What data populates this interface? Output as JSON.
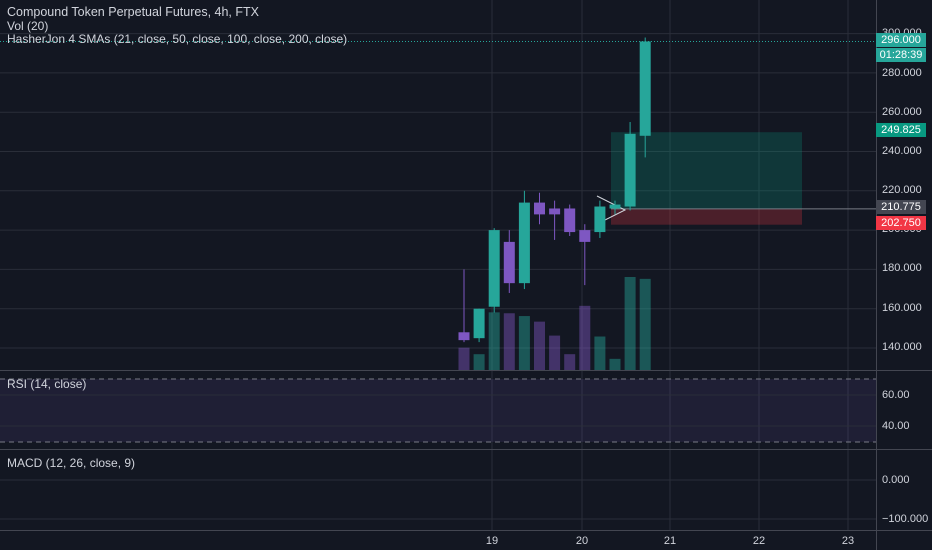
{
  "header": {
    "title": "Compound Token Perpetual Futures, 4h, FTX",
    "vol_study": "Vol (20)",
    "sma_study": "HasherJon 4 SMAs (21, close, 50, close, 100, close, 200, close)"
  },
  "price_axis": {
    "ticks": [
      "300.000",
      "280.000",
      "260.000",
      "240.000",
      "220.000",
      "200.000",
      "180.000",
      "160.000",
      "140.000"
    ],
    "last_price": "296.000",
    "countdown": "01:28:39",
    "target_price": "249.825",
    "entry_price": "210.775",
    "stop_price": "202.750"
  },
  "rsi_panel": {
    "label": "RSI (14, close)",
    "ticks": [
      "60.00",
      "40.00"
    ]
  },
  "macd_panel": {
    "label": "MACD (12, 26, close, 9)",
    "ticks": [
      "0.000",
      "−100.000"
    ]
  },
  "time_axis": {
    "labels": [
      "19",
      "20",
      "21",
      "22",
      "23"
    ]
  },
  "colors": {
    "background": "#131722",
    "up": "#26a69a",
    "down": "#7e57c2",
    "last_price_badge": "#26a69a",
    "target_badge": "#089981",
    "entry_badge": "#434651",
    "stop_badge": "#f23645"
  },
  "chart_data": {
    "type": "candlestick",
    "candles": [
      {
        "o": 148,
        "h": 180,
        "l": 143,
        "c": 144
      },
      {
        "o": 145,
        "h": 160,
        "l": 143,
        "c": 160
      },
      {
        "o": 161,
        "h": 201,
        "l": 158,
        "c": 200
      },
      {
        "o": 194,
        "h": 200,
        "l": 168,
        "c": 173
      },
      {
        "o": 173,
        "h": 220,
        "l": 170,
        "c": 214
      },
      {
        "o": 214,
        "h": 219,
        "l": 203,
        "c": 208
      },
      {
        "o": 211,
        "h": 215,
        "l": 195,
        "c": 208
      },
      {
        "o": 211,
        "h": 213,
        "l": 197,
        "c": 199
      },
      {
        "o": 200,
        "h": 203,
        "l": 172,
        "c": 194
      },
      {
        "o": 199,
        "h": 215,
        "l": 196,
        "c": 212
      },
      {
        "o": 211,
        "h": 215,
        "l": 208,
        "c": 213
      },
      {
        "o": 212,
        "h": 255,
        "l": 210,
        "c": 249
      },
      {
        "o": 248,
        "h": 298,
        "l": 237,
        "c": 296
      }
    ],
    "volume_relative": [
      0.24,
      0.17,
      0.62,
      0.61,
      0.58,
      0.52,
      0.37,
      0.17,
      0.69,
      0.36,
      0.12,
      1.0,
      0.98
    ],
    "x_labels": [
      "19",
      "20",
      "21",
      "22",
      "23"
    ],
    "y_range": [
      130,
      300
    ]
  }
}
